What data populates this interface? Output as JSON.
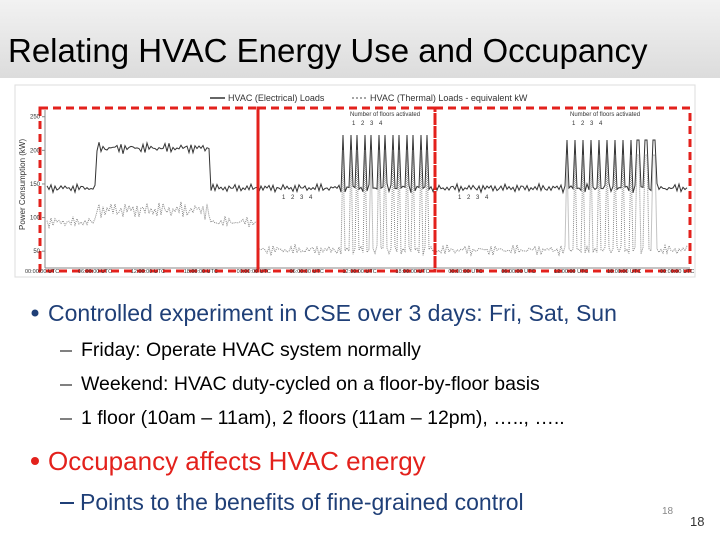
{
  "title": "Relating HVAC Energy Use and Occupancy",
  "chart": {
    "legend": [
      "HVAC (Electrical) Loads",
      "HVAC (Thermal) Loads - equivalent kW"
    ],
    "y_axis_label": "Power Consumption (kW)",
    "ylim": [
      25,
      260
    ],
    "yticks": [
      250,
      200,
      150,
      100,
      50
    ],
    "x_tick_labels": [
      "00:00:00 UTC",
      "06:00:00 UTC",
      "12:00:00 UTC",
      "18:00:00 UTC",
      "00:00:00 UTC",
      "06:00:00 UTC",
      "12:00:00 UTC",
      "18:00:00 UTC",
      "00:00:00 UTC",
      "06:00:00 UTC",
      "12:00:00 UTC",
      "18:00:00 UTC",
      "00:00:00 UTC"
    ],
    "floor_label": "Number of floors activated",
    "floors": [
      "1",
      "2",
      "3",
      "4"
    ]
  },
  "bullets": [
    {
      "text": "Controlled experiment in CSE over 3 days: Fri, Sat, Sun",
      "sub": [
        "Friday: Operate HVAC system normally",
        "Weekend: HVAC duty-cycled on a floor-by-floor basis",
        "1 floor (10am – 11am), 2 floors (11am – 12pm), ….., ….."
      ]
    },
    {
      "text": "Occupancy affects HVAC energy",
      "sub": [
        "Points to the benefits of fine-grained control"
      ]
    }
  ],
  "page_numbers": [
    "18",
    "18"
  ]
}
